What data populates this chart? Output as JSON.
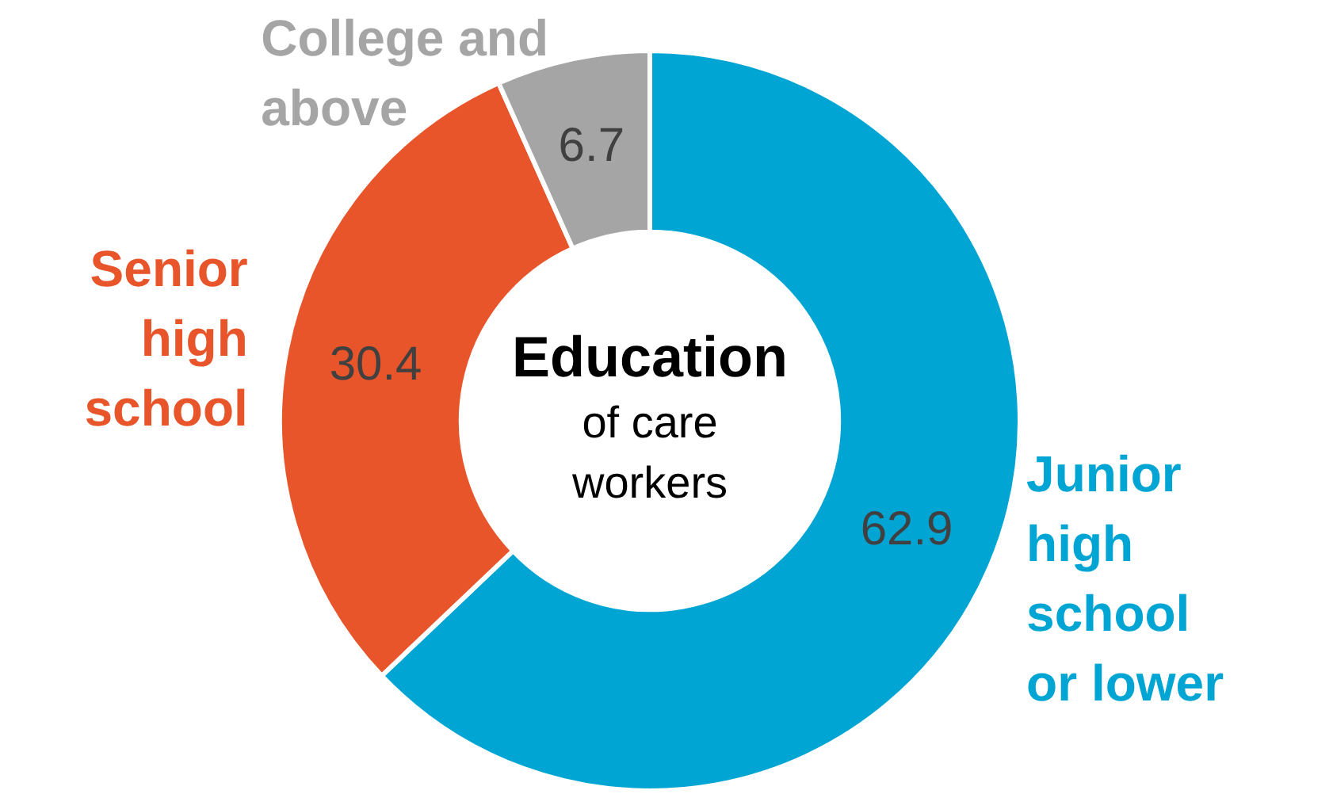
{
  "chart_data": {
    "type": "donut",
    "title": "Education",
    "subtitle": "of care workers",
    "categories": [
      "Junior high school or lower",
      "Senior high school",
      "College and above"
    ],
    "values": [
      62.9,
      30.4,
      6.7
    ],
    "colors": [
      "#00a5d3",
      "#e8552b",
      "#a5a5a5"
    ],
    "data_labels": true,
    "legend": false
  }
}
